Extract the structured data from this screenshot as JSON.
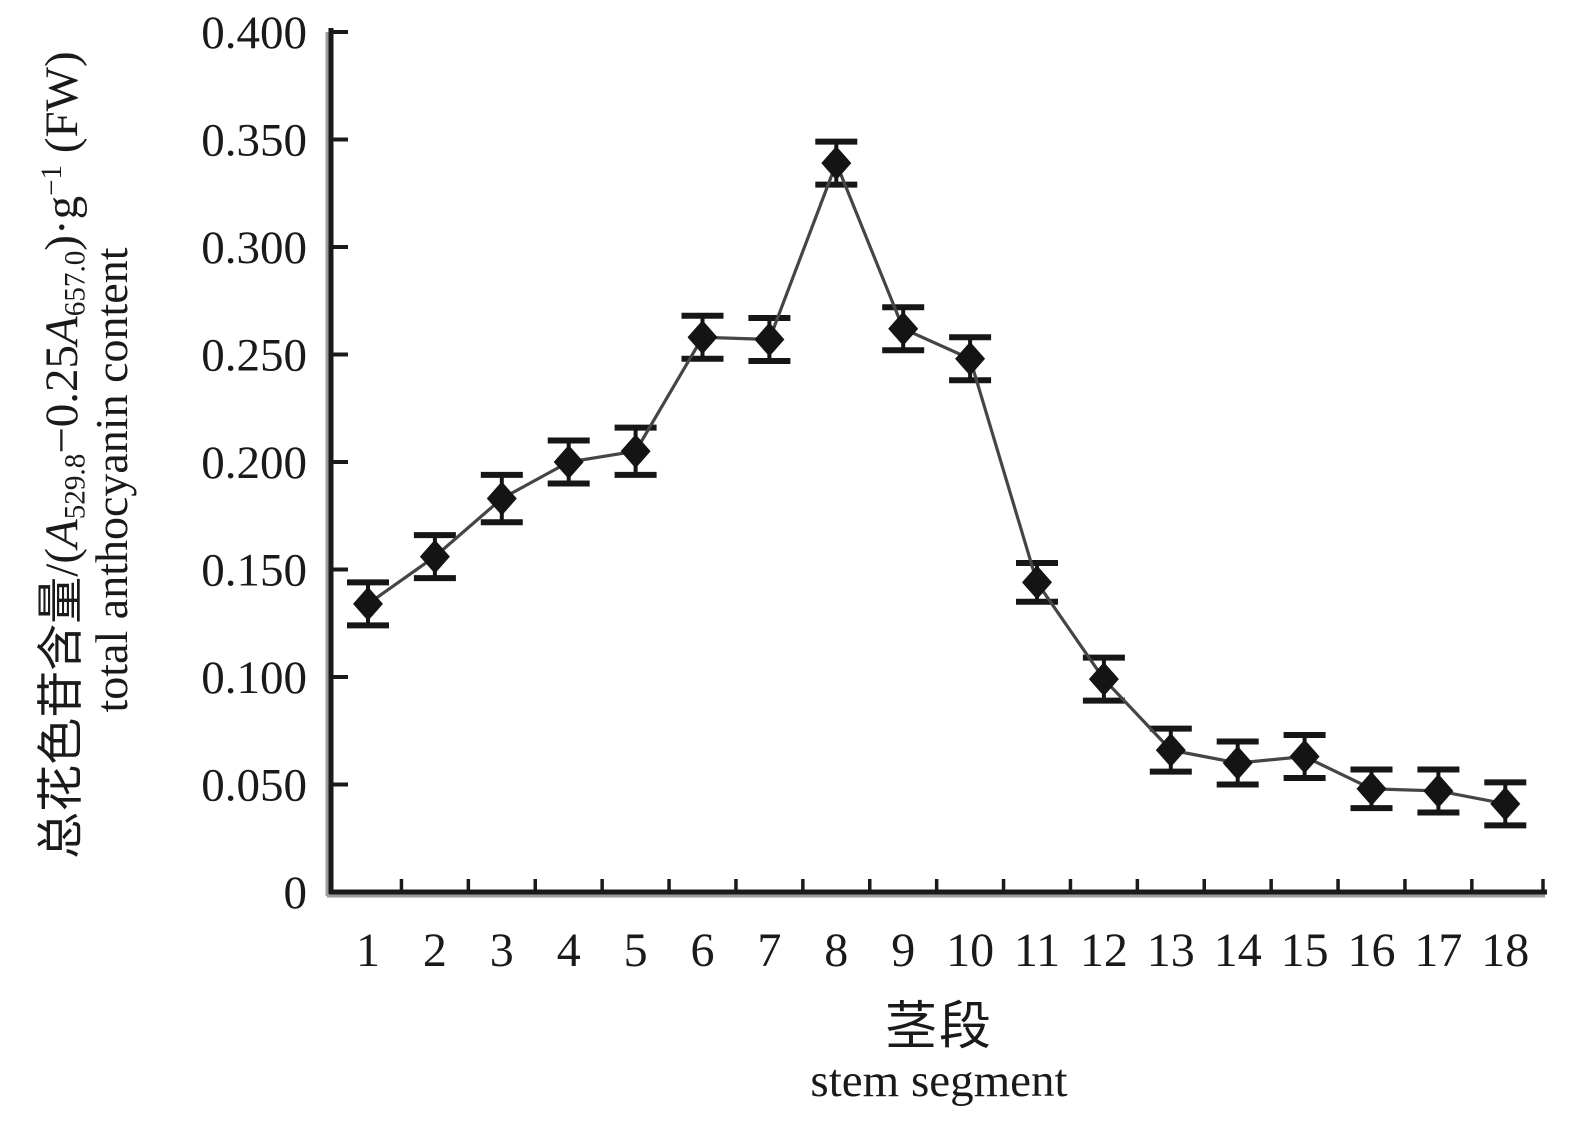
{
  "figure": {
    "y_axis_title": {
      "cn_prefix": "总花色苷含量/(",
      "var1": "A",
      "var1_sub": "529.8",
      "operator": "−0.25",
      "var2": "A",
      "var2_sub": "657.0",
      "unit_close": ")·g",
      "unit_sup": "−1",
      "unit_suffix": " (FW)",
      "en": "total anthocyanin content"
    },
    "x_axis_title": {
      "cn": "茎段",
      "en": "stem segment"
    }
  },
  "chart_data": {
    "type": "line",
    "title": "",
    "xlabel": "茎段 stem segment",
    "ylabel": "总花色苷含量/(A529.8−0.25A657.0)·g−1 (FW) total anthocyanin content",
    "categories": [
      "1",
      "2",
      "3",
      "4",
      "5",
      "6",
      "7",
      "8",
      "9",
      "10",
      "11",
      "12",
      "13",
      "14",
      "15",
      "16",
      "17",
      "18"
    ],
    "values": [
      0.134,
      0.156,
      0.183,
      0.2,
      0.205,
      0.258,
      0.257,
      0.339,
      0.262,
      0.248,
      0.144,
      0.099,
      0.066,
      0.06,
      0.063,
      0.048,
      0.047,
      0.041
    ],
    "errors": [
      0.01,
      0.01,
      0.011,
      0.01,
      0.011,
      0.01,
      0.01,
      0.01,
      0.01,
      0.01,
      0.009,
      0.01,
      0.01,
      0.01,
      0.01,
      0.009,
      0.01,
      0.01
    ],
    "ylim": [
      0,
      0.4
    ],
    "ytick_step": 0.05,
    "ytick_labels": [
      "0",
      "0.050",
      "0.100",
      "0.150",
      "0.200",
      "0.250",
      "0.300",
      "0.350",
      "0.400"
    ],
    "grid": false,
    "legend": false,
    "marker": "diamond",
    "error_bars": true,
    "colors": {
      "marker": "#141414",
      "line": "#454545",
      "error_bar": "#161616",
      "axis": "#1a1a1a",
      "axis_shadow": "#9c9c9c",
      "text": "#1a1a1a",
      "background": "#ffffff"
    }
  }
}
